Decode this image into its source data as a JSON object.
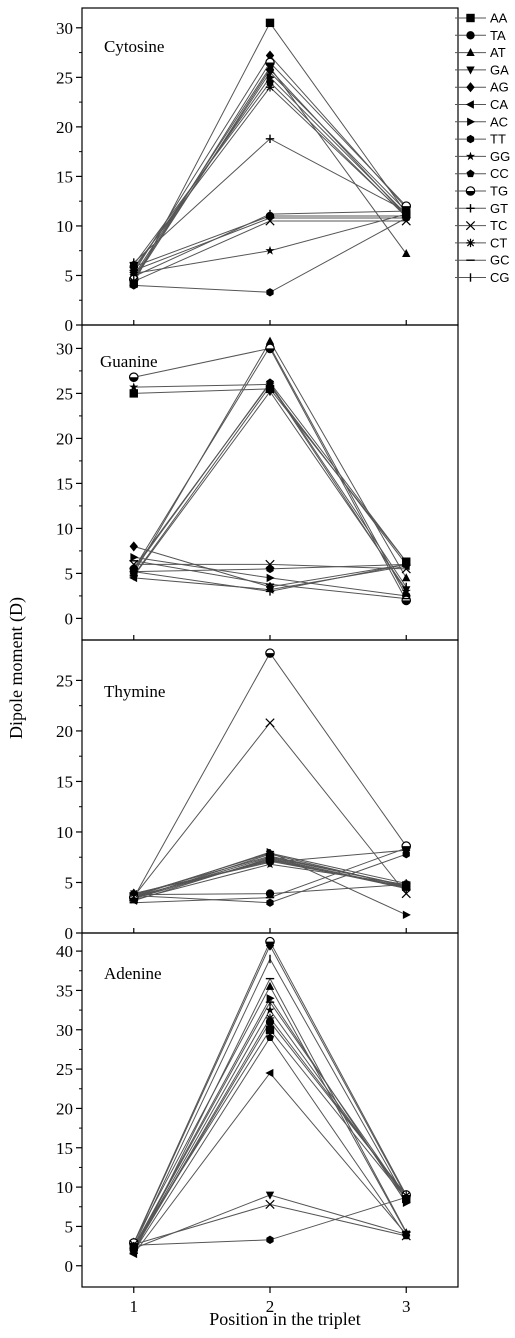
{
  "chart_data": {
    "type": "line",
    "ylabel": "Dipole moment (D)",
    "xlabel": "Position in the triplet",
    "x": [
      1,
      2,
      3
    ],
    "x_ticks": [
      "1",
      "2",
      "3"
    ],
    "xlim": [
      0.62,
      3.38
    ],
    "legend": {
      "placement": "top-right",
      "entries": [
        "AA",
        "TA",
        "AT",
        "GA",
        "AG",
        "CA",
        "AC",
        "TT",
        "GG",
        "CC",
        "TG",
        "GT",
        "TC",
        "CT",
        "GC",
        "CG"
      ],
      "markers": [
        "square",
        "circle",
        "triangle-up",
        "triangle-down",
        "diamond",
        "triangle-left",
        "triangle-right",
        "hexagon",
        "star",
        "pentagon",
        "half-circle",
        "plus",
        "x",
        "asterisk",
        "dash",
        "bar"
      ]
    },
    "panels": [
      {
        "title": "Cytosine",
        "ylim": [
          0,
          32
        ],
        "yticks": [
          0,
          5,
          10,
          15,
          20,
          25,
          30
        ],
        "series": [
          {
            "name": "AA",
            "values": [
              4.2,
              30.5,
              11.3
            ]
          },
          {
            "name": "TA",
            "values": [
              5.9,
              11.0,
              11.0
            ]
          },
          {
            "name": "AT",
            "values": [
              5.0,
              26.0,
              7.2
            ]
          },
          {
            "name": "GA",
            "values": [
              4.8,
              25.5,
              11.5
            ]
          },
          {
            "name": "AG",
            "values": [
              5.3,
              27.2,
              11.8
            ]
          },
          {
            "name": "CA",
            "values": [
              4.5,
              25.8,
              11.0
            ]
          },
          {
            "name": "AC",
            "values": [
              5.6,
              25.0,
              11.2
            ]
          },
          {
            "name": "TT",
            "values": [
              4.0,
              3.3,
              10.8
            ]
          },
          {
            "name": "GG",
            "values": [
              5.2,
              7.5,
              11.2
            ]
          },
          {
            "name": "CC",
            "values": [
              6.1,
              24.5,
              10.9
            ]
          },
          {
            "name": "TG",
            "values": [
              4.6,
              26.5,
              12.0
            ]
          },
          {
            "name": "GT",
            "values": [
              6.3,
              18.8,
              11.5
            ]
          },
          {
            "name": "TC",
            "values": [
              4.4,
              10.5,
              10.5
            ]
          },
          {
            "name": "CT",
            "values": [
              5.8,
              24.0,
              11.0
            ]
          },
          {
            "name": "GC",
            "values": [
              5.5,
              10.8,
              10.8
            ]
          },
          {
            "name": "CG",
            "values": [
              4.9,
              11.2,
              11.5
            ]
          }
        ]
      },
      {
        "title": "Guanine",
        "ylim": [
          -2.4,
          32.6
        ],
        "yticks": [
          0,
          5,
          10,
          15,
          20,
          25,
          30
        ],
        "series": [
          {
            "name": "AA",
            "values": [
              25.0,
              25.5,
              6.3
            ]
          },
          {
            "name": "TA",
            "values": [
              5.5,
              30.2,
              2.5
            ]
          },
          {
            "name": "AT",
            "values": [
              5.0,
              30.8,
              4.5
            ]
          },
          {
            "name": "GA",
            "values": [
              4.7,
              25.2,
              3.2
            ]
          },
          {
            "name": "AG",
            "values": [
              8.0,
              3.5,
              6.0
            ]
          },
          {
            "name": "CA",
            "values": [
              4.5,
              3.2,
              5.8
            ]
          },
          {
            "name": "AC",
            "values": [
              6.8,
              4.5,
              2.5
            ]
          },
          {
            "name": "TT",
            "values": [
              5.2,
              5.5,
              6.0
            ]
          },
          {
            "name": "GG",
            "values": [
              25.7,
              26.0,
              3.0
            ]
          },
          {
            "name": "CC",
            "values": [
              5.4,
              26.2,
              6.3
            ]
          },
          {
            "name": "TG",
            "values": [
              26.8,
              30.0,
              2.0
            ]
          },
          {
            "name": "GT",
            "values": [
              5.2,
              3.0,
              6.0
            ]
          },
          {
            "name": "TC",
            "values": [
              6.0,
              6.0,
              5.5
            ]
          },
          {
            "name": "CT",
            "values": [
              4.8,
              25.8,
              6.0
            ]
          },
          {
            "name": "GC",
            "values": [
              6.4,
              3.8,
              2.2
            ]
          },
          {
            "name": "CG",
            "values": [
              5.6,
              26.1,
              3.5
            ]
          }
        ]
      },
      {
        "title": "Thymine",
        "ylim": [
          0,
          29
        ],
        "yticks": [
          0,
          5,
          10,
          15,
          20,
          25
        ],
        "series": [
          {
            "name": "AA",
            "values": [
              3.5,
              7.5,
              4.7
            ]
          },
          {
            "name": "TA",
            "values": [
              3.8,
              3.9,
              4.8
            ]
          },
          {
            "name": "AT",
            "values": [
              3.6,
              7.2,
              4.5
            ]
          },
          {
            "name": "GA",
            "values": [
              3.4,
              7.8,
              4.6
            ]
          },
          {
            "name": "AG",
            "values": [
              3.9,
              7.0,
              8.2
            ]
          },
          {
            "name": "CA",
            "values": [
              3.2,
              7.4,
              4.5
            ]
          },
          {
            "name": "AC",
            "values": [
              3.6,
              8.0,
              1.8
            ]
          },
          {
            "name": "TT",
            "values": [
              3.7,
              3.0,
              7.8
            ]
          },
          {
            "name": "GG",
            "values": [
              3.3,
              6.8,
              4.8
            ]
          },
          {
            "name": "CC",
            "values": [
              3.8,
              7.6,
              4.7
            ]
          },
          {
            "name": "TG",
            "values": [
              3.5,
              27.7,
              8.6
            ]
          },
          {
            "name": "GT",
            "values": [
              3.4,
              7.3,
              4.4
            ]
          },
          {
            "name": "TC",
            "values": [
              3.6,
              20.8,
              3.9
            ]
          },
          {
            "name": "CT",
            "values": [
              3.9,
              7.1,
              4.6
            ]
          },
          {
            "name": "GC",
            "values": [
              3.0,
              3.5,
              8.4
            ]
          },
          {
            "name": "CG",
            "values": [
              3.7,
              7.9,
              4.9
            ]
          }
        ]
      },
      {
        "title": "Adenine",
        "ylim": [
          -2.7,
          42.3
        ],
        "yticks": [
          0,
          5,
          10,
          15,
          20,
          25,
          30,
          35,
          40
        ],
        "series": [
          {
            "name": "AA",
            "values": [
              2.5,
              30.0,
              8.5
            ]
          },
          {
            "name": "TA",
            "values": [
              2.0,
              31.0,
              9.0
            ]
          },
          {
            "name": "AT",
            "values": [
              3.0,
              35.5,
              4.2
            ]
          },
          {
            "name": "GA",
            "values": [
              2.2,
              9.0,
              4.0
            ]
          },
          {
            "name": "AG",
            "values": [
              2.8,
              40.7,
              8.8
            ]
          },
          {
            "name": "CA",
            "values": [
              1.5,
              24.5,
              4.0
            ]
          },
          {
            "name": "AC",
            "values": [
              2.4,
              34.0,
              8.0
            ]
          },
          {
            "name": "TT",
            "values": [
              2.6,
              3.3,
              8.7
            ]
          },
          {
            "name": "GG",
            "values": [
              2.1,
              32.5,
              8.5
            ]
          },
          {
            "name": "CC",
            "values": [
              1.8,
              29.0,
              3.8
            ]
          },
          {
            "name": "TG",
            "values": [
              2.9,
              41.2,
              9.0
            ]
          },
          {
            "name": "GT",
            "values": [
              2.3,
              33.5,
              8.6
            ]
          },
          {
            "name": "TC",
            "values": [
              2.7,
              7.8,
              3.8
            ]
          },
          {
            "name": "CT",
            "values": [
              2.0,
              31.5,
              8.9
            ]
          },
          {
            "name": "GC",
            "values": [
              1.6,
              36.5,
              4.3
            ]
          },
          {
            "name": "CG",
            "values": [
              2.5,
              39.0,
              8.4
            ]
          }
        ]
      }
    ]
  }
}
